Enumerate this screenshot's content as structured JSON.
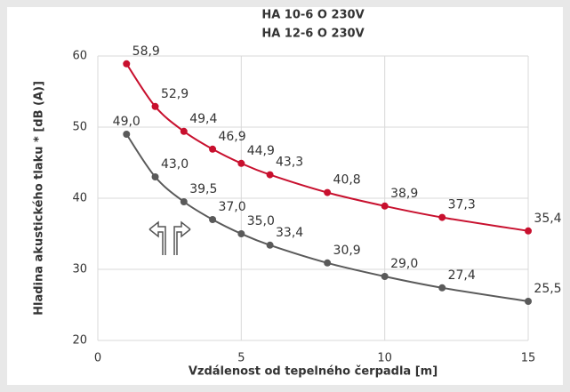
{
  "chart_data": {
    "type": "line",
    "title": [
      "HA 10-6 O 230V",
      "HA 12-6 O 230V"
    ],
    "xlabel": "Vzdálenost od tepelného čerpadla [m]",
    "ylabel": "Hladina akustického tlaku * [dB (A)]",
    "x": [
      1,
      2,
      3,
      4,
      5,
      6,
      8,
      10,
      12,
      15
    ],
    "series": [
      {
        "color": "#c8102e",
        "values": [
          58.9,
          52.9,
          49.4,
          46.9,
          44.9,
          43.3,
          40.8,
          38.9,
          37.3,
          35.4
        ],
        "value_labels": [
          "58,9",
          "52,9",
          "49,4",
          "46,9",
          "44,9",
          "43,3",
          "40,8",
          "38,9",
          "37,3",
          "35,4"
        ]
      },
      {
        "color": "#5a5a5a",
        "values": [
          49.0,
          43.0,
          39.5,
          37.0,
          35.0,
          33.4,
          30.9,
          29.0,
          27.4,
          25.5
        ],
        "value_labels": [
          "49,0",
          "43,0",
          "39,5",
          "37,0",
          "35,0",
          "33,4",
          "30,9",
          "29,0",
          "27,4",
          "25,5"
        ]
      }
    ],
    "xlim": [
      0,
      15
    ],
    "xticks": [
      0,
      5,
      10,
      15
    ],
    "ylim": [
      20,
      60
    ],
    "yticks": [
      20,
      30,
      40,
      50,
      60
    ],
    "grid": true
  }
}
